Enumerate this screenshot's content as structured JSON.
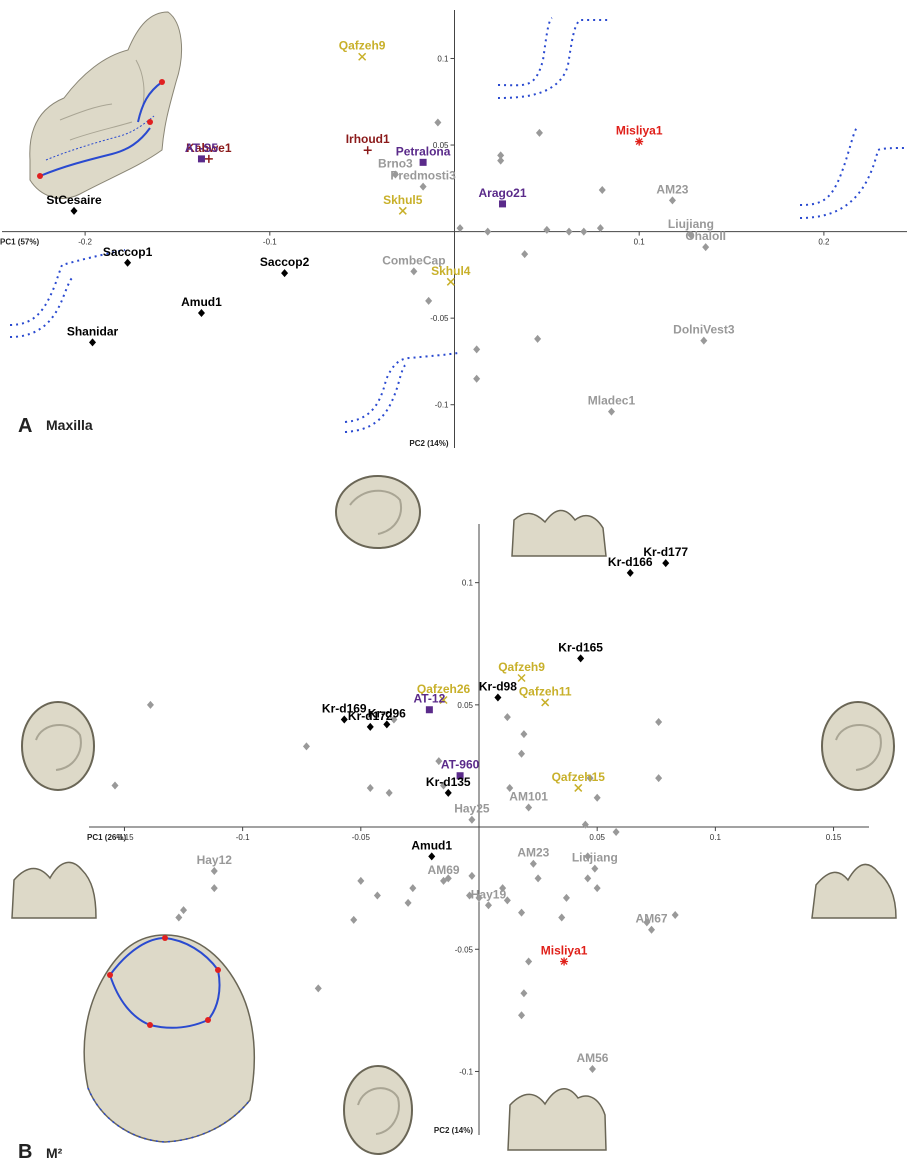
{
  "colors": {
    "modern": "#999999",
    "neanderthal": "#000000",
    "skhul_qafzeh": "#c8b02a",
    "midpleistocene": "#5a2a8a",
    "african_mp": "#8b1a1a",
    "misliya": "#e0201a",
    "curve_blue": "#2a4ad0",
    "curve_red": "#e02020",
    "bone": "#ddd9c8"
  },
  "panels": {
    "a": {
      "letter": "A",
      "title": "Maxilla"
    },
    "b": {
      "letter": "B",
      "title": "M²"
    }
  },
  "chart_data": [
    {
      "type": "scatter",
      "title": "Maxilla",
      "xlabel": "PC1 (57%)",
      "ylabel": "PC2 (14%)",
      "xlim": [
        -0.245,
        0.245
      ],
      "ylim": [
        -0.125,
        0.128
      ],
      "xticks": [
        -0.2,
        -0.1,
        0.1,
        0.2
      ],
      "yticks": [
        0.1,
        0.05,
        -0.05,
        -0.1
      ],
      "xtick_labels": [
        "-0.2",
        "-0.1",
        "0.1",
        "0.2"
      ],
      "ytick_labels": [
        "0.1",
        "0.05",
        "-0.05",
        "-0.1"
      ],
      "labeled_points": [
        {
          "label": "Qafzeh9",
          "x": -0.05,
          "y": 0.101,
          "group": "skhul_qafzeh",
          "marker": "x"
        },
        {
          "label": "Misliya1",
          "x": 0.1,
          "y": 0.052,
          "group": "misliya",
          "marker": "star"
        },
        {
          "label": "Kabwe1",
          "x": -0.133,
          "y": 0.042,
          "group": "african_mp",
          "marker": "plus"
        },
        {
          "label": "AT-S5",
          "x": -0.137,
          "y": 0.042,
          "group": "midpleistocene",
          "marker": "square"
        },
        {
          "label": "Irhoud1",
          "x": -0.047,
          "y": 0.047,
          "group": "african_mp",
          "marker": "plus"
        },
        {
          "label": "Petralona",
          "x": -0.017,
          "y": 0.04,
          "group": "midpleistocene",
          "marker": "square"
        },
        {
          "label": "Brno3",
          "x": -0.032,
          "y": 0.033,
          "group": "modern",
          "marker": "diamond"
        },
        {
          "label": "Predmosti3",
          "x": -0.017,
          "y": 0.026,
          "group": "modern",
          "marker": "diamond"
        },
        {
          "label": "Arago21",
          "x": 0.026,
          "y": 0.016,
          "group": "midpleistocene",
          "marker": "square"
        },
        {
          "label": "Skhul5",
          "x": -0.028,
          "y": 0.012,
          "group": "skhul_qafzeh",
          "marker": "x"
        },
        {
          "label": "AM23",
          "x": 0.118,
          "y": 0.018,
          "group": "modern",
          "marker": "diamond"
        },
        {
          "label": "Liujiang",
          "x": 0.128,
          "y": -0.002,
          "group": "modern",
          "marker": "diamond"
        },
        {
          "label": "OhaloII",
          "x": 0.136,
          "y": -0.009,
          "group": "modern",
          "marker": "diamond"
        },
        {
          "label": "StCesaire",
          "x": -0.206,
          "y": 0.012,
          "group": "neanderthal",
          "marker": "diamond"
        },
        {
          "label": "Saccop1",
          "x": -0.177,
          "y": -0.018,
          "group": "neanderthal",
          "marker": "diamond"
        },
        {
          "label": "Saccop2",
          "x": -0.092,
          "y": -0.024,
          "group": "neanderthal",
          "marker": "diamond"
        },
        {
          "label": "CombeCap",
          "x": -0.022,
          "y": -0.023,
          "group": "modern",
          "marker": "diamond"
        },
        {
          "label": "Skhul4",
          "x": -0.002,
          "y": -0.029,
          "group": "skhul_qafzeh",
          "marker": "x"
        },
        {
          "label": "Amud1",
          "x": -0.137,
          "y": -0.047,
          "group": "neanderthal",
          "marker": "diamond"
        },
        {
          "label": "Shanidar",
          "x": -0.196,
          "y": -0.064,
          "group": "neanderthal",
          "marker": "diamond"
        },
        {
          "label": "DolniVest3",
          "x": 0.135,
          "y": -0.063,
          "group": "modern",
          "marker": "diamond"
        },
        {
          "label": "Mladec1",
          "x": 0.085,
          "y": -0.104,
          "group": "modern",
          "marker": "diamond"
        }
      ],
      "unlabeled_points": [
        {
          "x": -0.009,
          "y": 0.063
        },
        {
          "x": 0.046,
          "y": 0.057
        },
        {
          "x": 0.025,
          "y": 0.044
        },
        {
          "x": 0.025,
          "y": 0.041
        },
        {
          "x": 0.08,
          "y": 0.024
        },
        {
          "x": 0.079,
          "y": 0.002
        },
        {
          "x": 0.05,
          "y": 0.001
        },
        {
          "x": 0.062,
          "y": 0.0
        },
        {
          "x": 0.07,
          "y": 0.0
        },
        {
          "x": 0.003,
          "y": 0.002
        },
        {
          "x": 0.018,
          "y": 0.0
        },
        {
          "x": 0.038,
          "y": -0.013
        },
        {
          "x": -0.014,
          "y": -0.04
        },
        {
          "x": 0.045,
          "y": -0.062
        },
        {
          "x": 0.012,
          "y": -0.068
        },
        {
          "x": 0.012,
          "y": -0.085
        }
      ]
    },
    {
      "type": "scatter",
      "title": "M²",
      "xlabel": "PC1 (26%)",
      "ylabel": "PC2 (14%)",
      "xlim": [
        -0.165,
        0.165
      ],
      "ylim": [
        -0.126,
        0.124
      ],
      "xticks": [
        -0.15,
        -0.1,
        -0.05,
        0.05,
        0.1,
        0.15
      ],
      "yticks": [
        0.1,
        0.05,
        -0.05,
        -0.1
      ],
      "xtick_labels": [
        "-0.15",
        "-0.1",
        "-0.05",
        "0.05",
        "0.1",
        "0.15"
      ],
      "ytick_labels": [
        "0.1",
        "0.05",
        "-0.05",
        "-0.1"
      ],
      "labeled_points": [
        {
          "label": "Kr-d177",
          "x": 0.079,
          "y": 0.108,
          "group": "neanderthal",
          "marker": "diamond"
        },
        {
          "label": "Kr-d166",
          "x": 0.064,
          "y": 0.104,
          "group": "neanderthal",
          "marker": "diamond"
        },
        {
          "label": "Kr-d165",
          "x": 0.043,
          "y": 0.069,
          "group": "neanderthal",
          "marker": "diamond"
        },
        {
          "label": "Qafzeh9",
          "x": 0.018,
          "y": 0.061,
          "group": "skhul_qafzeh",
          "marker": "x"
        },
        {
          "label": "Qafzeh11",
          "x": 0.028,
          "y": 0.051,
          "group": "skhul_qafzeh",
          "marker": "x"
        },
        {
          "label": "Qafzeh26",
          "x": -0.015,
          "y": 0.052,
          "group": "skhul_qafzeh",
          "marker": "x"
        },
        {
          "label": "Kr-d98",
          "x": 0.008,
          "y": 0.053,
          "group": "neanderthal",
          "marker": "diamond"
        },
        {
          "label": "AT-12",
          "x": -0.021,
          "y": 0.048,
          "group": "midpleistocene",
          "marker": "square"
        },
        {
          "label": "Kr-d96",
          "x": -0.039,
          "y": 0.042,
          "group": "neanderthal",
          "marker": "diamond"
        },
        {
          "label": "Kr-d169",
          "x": -0.057,
          "y": 0.044,
          "group": "neanderthal",
          "marker": "diamond"
        },
        {
          "label": "Kr-d172",
          "x": -0.046,
          "y": 0.041,
          "group": "neanderthal",
          "marker": "diamond"
        },
        {
          "label": "AT-960",
          "x": -0.008,
          "y": 0.021,
          "group": "midpleistocene",
          "marker": "square"
        },
        {
          "label": "Kr-d135",
          "x": -0.013,
          "y": 0.014,
          "group": "neanderthal",
          "marker": "diamond"
        },
        {
          "label": "Qafzeh15",
          "x": 0.042,
          "y": 0.016,
          "group": "skhul_qafzeh",
          "marker": "x"
        },
        {
          "label": "AM101",
          "x": 0.021,
          "y": 0.008,
          "group": "modern",
          "marker": "diamond"
        },
        {
          "label": "Hay25",
          "x": -0.003,
          "y": 0.003,
          "group": "modern",
          "marker": "diamond"
        },
        {
          "label": "Amud1",
          "x": -0.02,
          "y": -0.012,
          "group": "neanderthal",
          "marker": "diamond"
        },
        {
          "label": "Hay12",
          "x": -0.112,
          "y": -0.018,
          "group": "modern",
          "marker": "diamond"
        },
        {
          "label": "AM23",
          "x": 0.023,
          "y": -0.015,
          "group": "modern",
          "marker": "diamond"
        },
        {
          "label": "Liujiang",
          "x": 0.049,
          "y": -0.017,
          "group": "modern",
          "marker": "diamond"
        },
        {
          "label": "AM69",
          "x": -0.015,
          "y": -0.022,
          "group": "modern",
          "marker": "diamond"
        },
        {
          "label": "Hay19",
          "x": 0.004,
          "y": -0.032,
          "group": "modern",
          "marker": "diamond"
        },
        {
          "label": "AM67",
          "x": 0.073,
          "y": -0.042,
          "group": "modern",
          "marker": "diamond"
        },
        {
          "label": "Misliya1",
          "x": 0.036,
          "y": -0.055,
          "group": "misliya",
          "marker": "star"
        },
        {
          "label": "AM56",
          "x": 0.048,
          "y": -0.099,
          "group": "modern",
          "marker": "diamond"
        }
      ],
      "unlabeled_points": [
        {
          "x": -0.139,
          "y": 0.05
        },
        {
          "x": -0.154,
          "y": 0.017
        },
        {
          "x": -0.073,
          "y": 0.033
        },
        {
          "x": -0.046,
          "y": 0.016
        },
        {
          "x": -0.038,
          "y": 0.014
        },
        {
          "x": -0.036,
          "y": 0.044
        },
        {
          "x": -0.017,
          "y": 0.027
        },
        {
          "x": -0.015,
          "y": 0.017
        },
        {
          "x": 0.012,
          "y": 0.045
        },
        {
          "x": 0.019,
          "y": 0.038
        },
        {
          "x": 0.018,
          "y": 0.03
        },
        {
          "x": 0.013,
          "y": 0.016
        },
        {
          "x": 0.047,
          "y": 0.02
        },
        {
          "x": 0.05,
          "y": 0.012
        },
        {
          "x": 0.076,
          "y": 0.043
        },
        {
          "x": 0.076,
          "y": 0.02
        },
        {
          "x": 0.045,
          "y": 0.001
        },
        {
          "x": 0.058,
          "y": -0.002
        },
        {
          "x": 0.046,
          "y": -0.012
        },
        {
          "x": 0.046,
          "y": -0.021
        },
        {
          "x": 0.037,
          "y": -0.029
        },
        {
          "x": 0.035,
          "y": -0.037
        },
        {
          "x": 0.025,
          "y": -0.021
        },
        {
          "x": 0.018,
          "y": -0.035
        },
        {
          "x": 0.01,
          "y": -0.025
        },
        {
          "x": 0.012,
          "y": -0.03
        },
        {
          "x": 0.021,
          "y": -0.055
        },
        {
          "x": 0.019,
          "y": -0.068
        },
        {
          "x": 0.018,
          "y": -0.077
        },
        {
          "x": -0.05,
          "y": -0.022
        },
        {
          "x": -0.043,
          "y": -0.028
        },
        {
          "x": -0.053,
          "y": -0.038
        },
        {
          "x": -0.028,
          "y": -0.025
        },
        {
          "x": -0.03,
          "y": -0.031
        },
        {
          "x": -0.013,
          "y": -0.021
        },
        {
          "x": -0.004,
          "y": -0.028
        },
        {
          "x": -0.003,
          "y": -0.02
        },
        {
          "x": -0.112,
          "y": -0.025
        },
        {
          "x": -0.127,
          "y": -0.037
        },
        {
          "x": -0.125,
          "y": -0.034
        },
        {
          "x": -0.068,
          "y": -0.066
        },
        {
          "x": 0.05,
          "y": -0.025
        },
        {
          "x": 0.083,
          "y": -0.036
        },
        {
          "x": 0.071,
          "y": -0.039
        },
        {
          "x": 0.0,
          "y": -0.029
        }
      ]
    }
  ]
}
